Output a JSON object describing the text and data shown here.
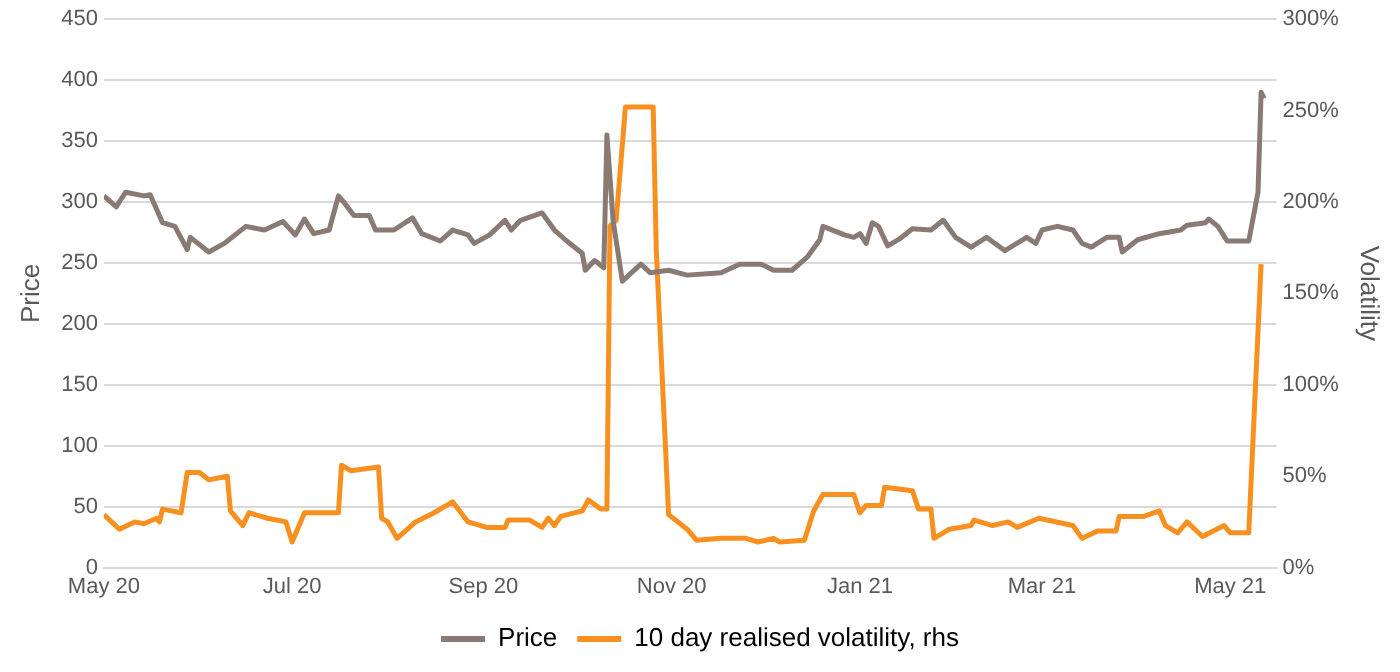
{
  "chart_data": {
    "type": "line",
    "xlim": [
      "2020-05-01",
      "2021-05-16"
    ],
    "xticks": [
      {
        "value": "2020-05-01",
        "label": "May 20"
      },
      {
        "value": "2020-07-01",
        "label": "Jul 20"
      },
      {
        "value": "2020-09-01",
        "label": "Sep 20"
      },
      {
        "value": "2020-11-01",
        "label": "Nov 20"
      },
      {
        "value": "2021-01-01",
        "label": "Jan 21"
      },
      {
        "value": "2021-03-01",
        "label": "Mar 21"
      },
      {
        "value": "2021-05-01",
        "label": "May 21"
      }
    ],
    "ylabel": "Price",
    "y2label": "Volatility",
    "ylim": [
      0,
      450
    ],
    "yticks": [
      0,
      50,
      100,
      150,
      200,
      250,
      300,
      350,
      400,
      450
    ],
    "y2lim": [
      0,
      300
    ],
    "y2ticks": [
      {
        "value": 0,
        "label": "0%"
      },
      {
        "value": 50,
        "label": "50%"
      },
      {
        "value": 100,
        "label": "100%"
      },
      {
        "value": 150,
        "label": "150%"
      },
      {
        "value": 200,
        "label": "200%"
      },
      {
        "value": 250,
        "label": "250%"
      },
      {
        "value": 300,
        "label": "300%"
      }
    ],
    "grid": "y",
    "legend": "bottom",
    "marker": "none",
    "line_style": "solid",
    "series": [
      {
        "name": "Price",
        "color": "#8a7a74",
        "x": [
          "2020-05-01",
          "2020-05-05",
          "2020-05-08",
          "2020-05-14",
          "2020-05-16",
          "2020-05-20",
          "2020-05-24",
          "2020-05-28",
          "2020-05-29",
          "2020-06-04",
          "2020-06-09",
          "2020-06-16",
          "2020-06-22",
          "2020-06-28",
          "2020-07-02",
          "2020-07-05",
          "2020-07-08",
          "2020-07-13",
          "2020-07-16",
          "2020-07-18",
          "2020-07-21",
          "2020-07-26",
          "2020-07-28",
          "2020-08-03",
          "2020-08-09",
          "2020-08-12",
          "2020-08-18",
          "2020-08-22",
          "2020-08-27",
          "2020-08-29",
          "2020-09-03",
          "2020-09-08",
          "2020-09-10",
          "2020-09-13",
          "2020-09-20",
          "2020-09-24",
          "2020-09-28",
          "2020-10-03",
          "2020-10-04",
          "2020-10-07",
          "2020-10-10",
          "2020-10-11",
          "2020-10-13",
          "2020-10-16",
          "2020-10-22",
          "2020-10-25",
          "2020-10-31",
          "2020-11-06",
          "2020-11-17",
          "2020-11-23",
          "2020-11-30",
          "2020-12-04",
          "2020-12-10",
          "2020-12-15",
          "2020-12-19",
          "2020-12-20",
          "2020-12-27",
          "2020-12-30",
          "2021-01-01",
          "2021-01-03",
          "2021-01-05",
          "2021-01-07",
          "2021-01-10",
          "2021-01-14",
          "2021-01-18",
          "2021-01-24",
          "2021-01-28",
          "2021-02-01",
          "2021-02-06",
          "2021-02-11",
          "2021-02-17",
          "2021-02-24",
          "2021-02-27",
          "2021-03-01",
          "2021-03-06",
          "2021-03-11",
          "2021-03-14",
          "2021-03-17",
          "2021-03-22",
          "2021-03-26",
          "2021-03-27",
          "2021-04-01",
          "2021-04-08",
          "2021-04-15",
          "2021-04-17",
          "2021-04-23",
          "2021-04-24",
          "2021-04-27",
          "2021-04-30",
          "2021-05-07",
          "2021-05-10",
          "2021-05-11",
          "2021-05-12"
        ],
        "values": [
          305,
          296,
          308,
          305,
          306,
          283,
          280,
          261,
          271,
          259,
          266,
          280,
          277,
          284,
          273,
          286,
          274,
          277,
          305,
          299,
          289,
          289,
          277,
          277,
          287,
          274,
          268,
          277,
          273,
          266,
          273,
          285,
          277,
          285,
          291,
          277,
          268,
          258,
          244,
          252,
          246,
          355,
          285,
          235,
          249,
          242,
          244,
          240,
          242,
          249,
          249,
          244,
          244,
          255,
          269,
          280,
          273,
          271,
          274,
          266,
          283,
          280,
          264,
          270,
          278,
          277,
          285,
          271,
          263,
          271,
          260,
          271,
          266,
          277,
          280,
          277,
          266,
          263,
          271,
          271,
          259,
          269,
          274,
          277,
          281,
          283,
          286,
          280,
          268,
          268,
          308,
          390,
          385
        ]
      },
      {
        "name": "10 day realised volatility, rhs",
        "color": "#f7901e",
        "axis": "y2",
        "x": [
          "2020-05-01",
          "2020-05-06",
          "2020-05-11",
          "2020-05-14",
          "2020-05-18",
          "2020-05-19",
          "2020-05-20",
          "2020-05-26",
          "2020-05-28",
          "2020-06-01",
          "2020-06-04",
          "2020-06-10",
          "2020-06-11",
          "2020-06-15",
          "2020-06-17",
          "2020-06-23",
          "2020-06-29",
          "2020-07-01",
          "2020-07-05",
          "2020-07-16",
          "2020-07-17",
          "2020-07-20",
          "2020-07-29",
          "2020-07-30",
          "2020-08-01",
          "2020-08-04",
          "2020-08-10",
          "2020-08-16",
          "2020-08-22",
          "2020-08-27",
          "2020-09-02",
          "2020-09-08",
          "2020-09-09",
          "2020-09-16",
          "2020-09-20",
          "2020-09-22",
          "2020-09-24",
          "2020-09-26",
          "2020-10-03",
          "2020-10-05",
          "2020-10-09",
          "2020-10-11",
          "2020-10-12",
          "2020-10-14",
          "2020-10-17",
          "2020-10-26",
          "2020-10-27",
          "2020-10-31",
          "2020-11-06",
          "2020-11-09",
          "2020-11-17",
          "2020-11-25",
          "2020-11-29",
          "2020-12-04",
          "2020-12-06",
          "2020-12-14",
          "2020-12-17",
          "2020-12-20",
          "2020-12-30",
          "2021-01-01",
          "2021-01-03",
          "2021-01-08",
          "2021-01-09",
          "2021-01-18",
          "2021-01-20",
          "2021-01-24",
          "2021-01-25",
          "2021-01-30",
          "2021-02-06",
          "2021-02-07",
          "2021-02-13",
          "2021-02-18",
          "2021-02-21",
          "2021-02-28",
          "2021-03-11",
          "2021-03-14",
          "2021-03-19",
          "2021-03-25",
          "2021-03-26",
          "2021-04-03",
          "2021-04-08",
          "2021-04-10",
          "2021-04-14",
          "2021-04-17",
          "2021-04-22",
          "2021-04-29",
          "2021-05-01",
          "2021-05-07",
          "2021-05-11"
        ],
        "values": [
          29,
          21,
          25,
          24,
          27,
          25,
          32,
          30,
          52,
          52,
          48,
          50,
          31,
          23,
          30,
          27,
          25,
          14,
          30,
          30,
          56,
          53,
          55,
          27,
          25,
          16,
          25,
          30,
          36,
          25,
          22,
          22,
          26,
          26,
          22,
          27,
          23,
          28,
          31,
          37,
          32,
          32,
          187,
          190,
          252,
          252,
          174,
          29,
          21,
          15,
          16,
          16,
          14,
          16,
          14,
          15,
          31,
          40,
          40,
          30,
          34,
          34,
          44,
          42,
          32,
          32,
          16,
          21,
          23,
          26,
          23,
          25,
          22,
          27,
          23,
          16,
          20,
          20,
          28,
          28,
          31,
          23,
          19,
          25,
          17,
          23,
          19,
          19,
          166
        ]
      }
    ]
  }
}
